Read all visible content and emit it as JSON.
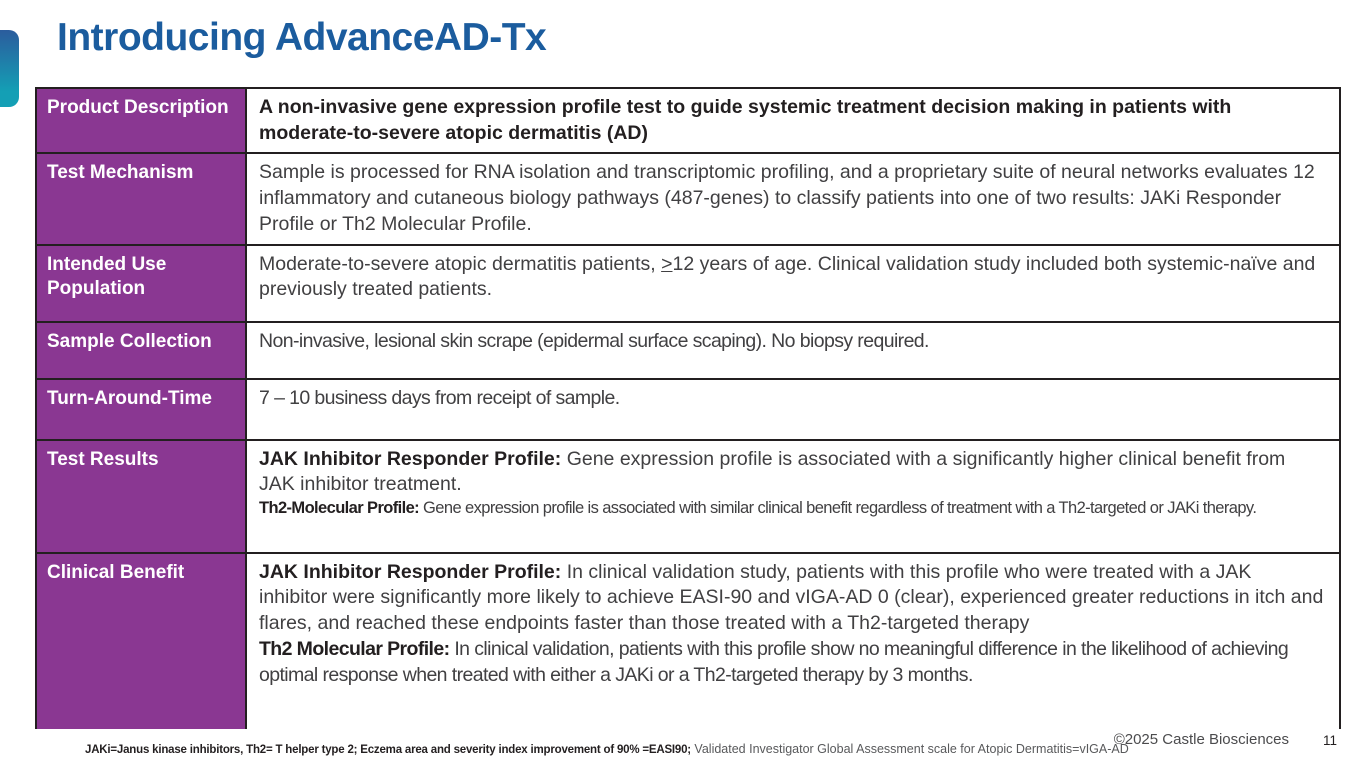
{
  "slide": {
    "title": "Introducing AdvanceAD-Tx",
    "footnote_primary": "JAKi=Janus kinase inhibitors, Th2= T helper type 2; Eczema area and severity index improvement of 90% =EASI90;",
    "footnote_secondary": " Validated Investigator Global Assessment scale for Atopic Dermatitis=vIGA-AD",
    "copyright": "©2025 Castle Biosciences",
    "page_number": "11"
  },
  "colors": {
    "purple": "#8A3792",
    "title-blue": "#1B5C9E",
    "border-dark": "#231F20",
    "body-text": "#414042",
    "accent-top": "#2B5C9D",
    "accent-bottom": "#149FB5"
  },
  "table": {
    "rows": [
      {
        "label": "Product Description",
        "paragraphs": [
          {
            "segments": [
              {
                "text": "A non-invasive gene expression profile test to guide systemic treatment decision making in patients with moderate-to-severe atopic dermatitis (AD)",
                "bold": true
              }
            ]
          }
        ]
      },
      {
        "label": "Test Mechanism",
        "paragraphs": [
          {
            "segments": [
              {
                "text": "Sample is processed for RNA isolation and transcriptomic profiling, and a proprietary suite of neural networks evaluates 12 inflammatory and cutaneous biology pathways (487-genes) to classify patients into one of two results: JAKi Responder Profile or Th2 Molecular Profile."
              }
            ]
          }
        ]
      },
      {
        "label": "Intended Use Population",
        "paragraphs": [
          {
            "segments": [
              {
                "text": "Moderate-to-severe atopic dermatitis patients, "
              },
              {
                "text": ">",
                "underline": true
              },
              {
                "text": "12 years of age. Clinical validation study included both systemic-naïve and previously treated patients."
              }
            ]
          }
        ]
      },
      {
        "label": "Sample Collection",
        "paragraphs": [
          {
            "condensed": true,
            "segments": [
              {
                "text": "Non-invasive, lesional skin scrape (epidermal surface scaping). No biopsy required."
              }
            ]
          }
        ]
      },
      {
        "label": "Turn-Around-Time",
        "paragraphs": [
          {
            "condensed": true,
            "segments": [
              {
                "text": "7 – 10 business days from receipt of sample."
              }
            ]
          }
        ]
      },
      {
        "label": "Test Results",
        "paragraphs": [
          {
            "segments": [
              {
                "text": "JAK Inhibitor Responder Profile:",
                "bold": true
              },
              {
                "text": " Gene expression profile is associated with a significantly higher clinical benefit from JAK inhibitor treatment."
              }
            ]
          },
          {
            "small": true,
            "condensed": true,
            "segments": [
              {
                "text": "Th2-Molecular Profile:",
                "bold": true
              },
              {
                "text": " Gene expression profile is associated with similar clinical benefit regardless of treatment with a Th2-targeted or JAKi therapy."
              }
            ]
          }
        ]
      },
      {
        "label": "Clinical Benefit",
        "paragraphs": [
          {
            "segments": [
              {
                "text": "JAK Inhibitor Responder Profile:",
                "bold": true
              },
              {
                "text": " In clinical validation study, patients with this profile who were treated with a JAK inhibitor were significantly more likely to achieve EASI-90 and vIGA-AD 0 (clear), experienced greater reductions in itch and flares, and reached these endpoints faster than those treated with a Th2-targeted therapy"
              }
            ]
          },
          {
            "condensed": true,
            "segments": [
              {
                "text": "Th2 Molecular Profile:",
                "bold": true
              },
              {
                "text": " In clinical validation, patients with this profile show no meaningful difference in the likelihood of achieving optimal response when treated with either a JAKi or a Th2-targeted therapy by 3 months."
              }
            ]
          }
        ]
      }
    ]
  }
}
